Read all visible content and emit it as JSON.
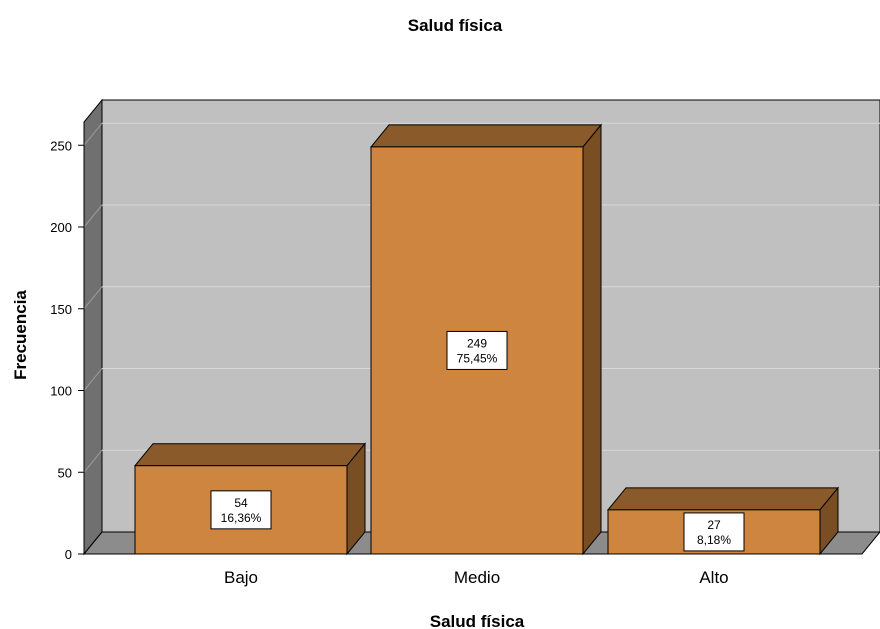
{
  "chart_data": {
    "type": "bar",
    "title": "Salud física",
    "xlabel": "Salud física",
    "ylabel": "Frecuencia",
    "categories": [
      "Bajo",
      "Medio",
      "Alto"
    ],
    "values": [
      54,
      249,
      27
    ],
    "percent_labels": [
      "16,36%",
      "75,45%",
      "8,18%"
    ],
    "ylim": [
      0,
      260
    ],
    "yticks": [
      0,
      50,
      100,
      150,
      200,
      250
    ],
    "grid": true,
    "legend": "none",
    "colors": {
      "bar_front": "#cd853f",
      "bar_top": "#8b5a2b",
      "bar_side": "#7a4e23",
      "wall": "#c0c0c0",
      "wall_left": "#707070",
      "floor": "#8c8c8c",
      "gridline": "#d8d8d8"
    }
  }
}
